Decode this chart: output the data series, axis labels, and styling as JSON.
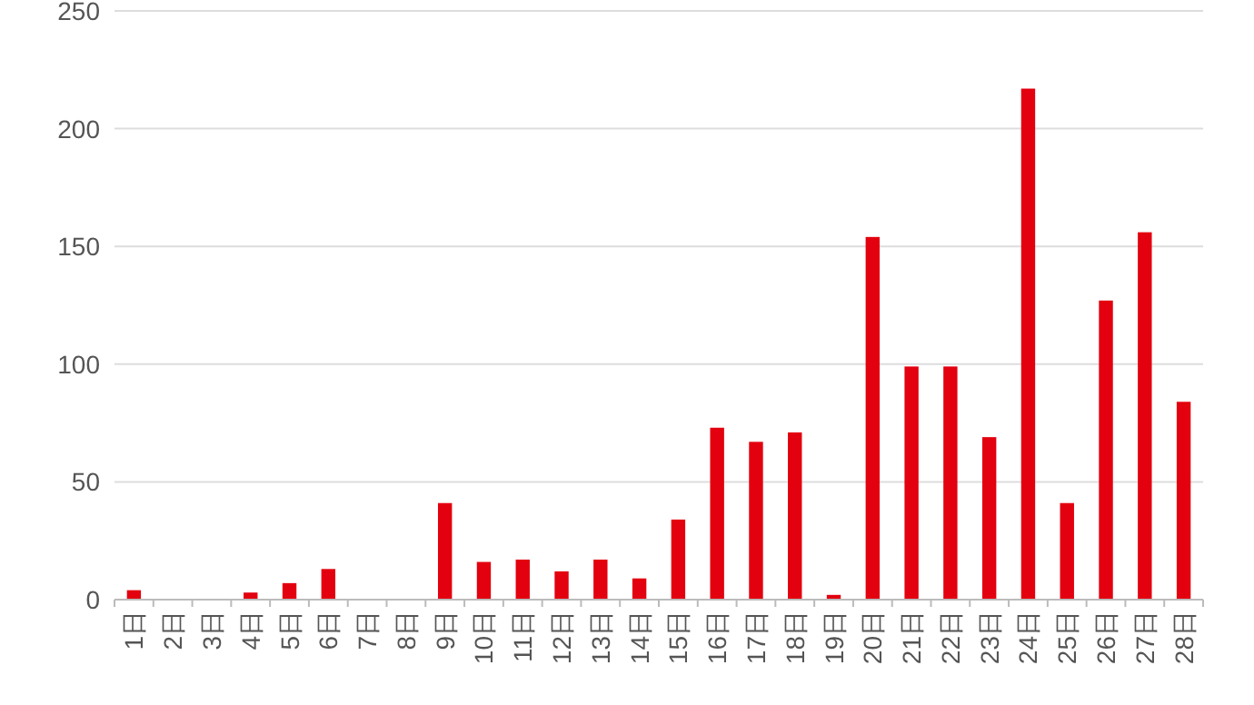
{
  "chart_data": {
    "type": "bar",
    "categories": [
      "1日",
      "2日",
      "3日",
      "4日",
      "5日",
      "6日",
      "7日",
      "8日",
      "9日",
      "10日",
      "11日",
      "12日",
      "13日",
      "14日",
      "15日",
      "16日",
      "17日",
      "18日",
      "19日",
      "20日",
      "21日",
      "22日",
      "23日",
      "24日",
      "25日",
      "26日",
      "27日",
      "28日"
    ],
    "values": [
      4,
      0,
      0,
      3,
      7,
      13,
      0,
      0,
      41,
      16,
      17,
      12,
      17,
      9,
      34,
      73,
      67,
      71,
      2,
      154,
      99,
      99,
      69,
      217,
      41,
      127,
      156,
      84
    ],
    "color": "#e3000f",
    "ylim": [
      0,
      250
    ],
    "yticks": [
      0,
      50,
      100,
      150,
      200,
      250
    ],
    "grid": "y"
  }
}
